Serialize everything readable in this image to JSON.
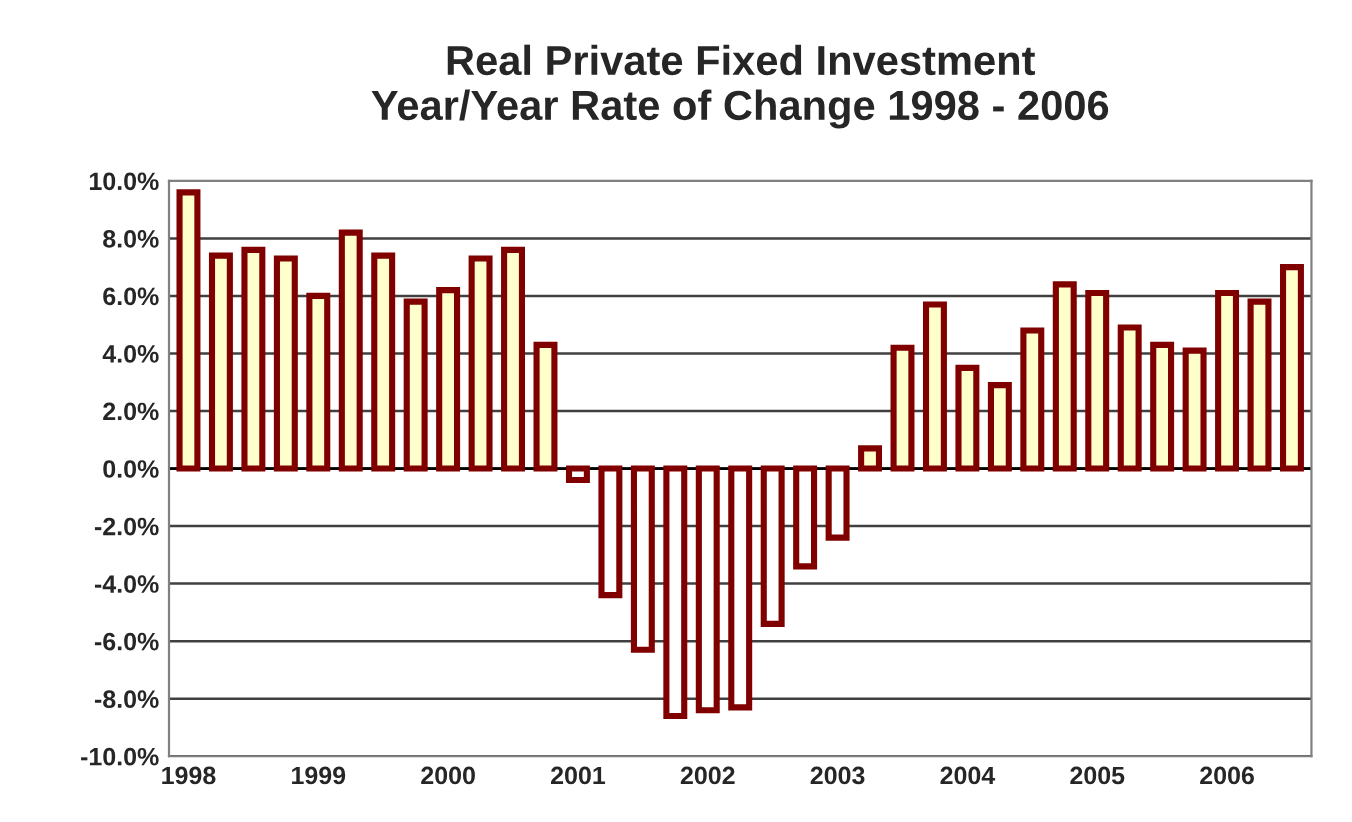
{
  "chart_data": {
    "type": "bar",
    "title": "Real Private Fixed Investment\nYear/Year Rate of Change 1998 - 2006",
    "categories": [
      "1998",
      null,
      null,
      null,
      "1999",
      null,
      null,
      null,
      "2000",
      null,
      null,
      null,
      "2001",
      null,
      null,
      null,
      "2002",
      null,
      null,
      null,
      "2003",
      null,
      null,
      null,
      "2004",
      null,
      null,
      null,
      "2005",
      null,
      null,
      null,
      "2006",
      null,
      null
    ],
    "values": [
      9.6,
      7.4,
      7.6,
      7.3,
      6.0,
      8.2,
      7.4,
      5.8,
      6.2,
      7.3,
      7.6,
      4.3,
      -0.4,
      -4.4,
      -6.3,
      -8.6,
      -8.4,
      -8.3,
      -5.4,
      -3.4,
      -2.4,
      0.7,
      4.2,
      5.7,
      3.5,
      2.9,
      4.8,
      6.4,
      6.1,
      4.9,
      4.3,
      4.1,
      6.1,
      5.8,
      7.0
    ],
    "colors": [
      "#ffffcc",
      "#ffffcc",
      "#ffffcc",
      "#ffffcc",
      "#ffffcc",
      "#ffffcc",
      "#ffffcc",
      "#ffffcc",
      "#ffffcc",
      "#ffffcc",
      "#ffffcc",
      "#ffffcc",
      "#ffffff",
      "#ffffff",
      "#ffffff",
      "#ffffff",
      "#ffffff",
      "#ffffff",
      "#ffffff",
      "#ffffff",
      "#ffffff",
      "#ffffcc",
      "#ffffcc",
      "#ffffcc",
      "#ffffcc",
      "#ffffcc",
      "#ffffcc",
      "#ffffcc",
      "#ffffcc",
      "#ffffcc",
      "#ffffcc",
      "#ffffcc",
      "#ffffcc",
      "#ffffcc",
      "#ffffcc"
    ],
    "ylim": [
      -10,
      10
    ],
    "yticks": [
      {
        "value": -10,
        "label": "-10.0%"
      },
      {
        "value": -8,
        "label": "-8.0%"
      },
      {
        "value": -6,
        "label": "-6.0%"
      },
      {
        "value": -4,
        "label": "-4.0%"
      },
      {
        "value": -2,
        "label": "-2.0%"
      },
      {
        "value": 0,
        "label": "0.0%"
      },
      {
        "value": 2,
        "label": "2.0%"
      },
      {
        "value": 4,
        "label": "4.0%"
      },
      {
        "value": 6,
        "label": "6.0%"
      },
      {
        "value": 8,
        "label": "8.0%"
      },
      {
        "value": 10,
        "label": "10.0%"
      }
    ],
    "grid": "y",
    "legend": false
  }
}
